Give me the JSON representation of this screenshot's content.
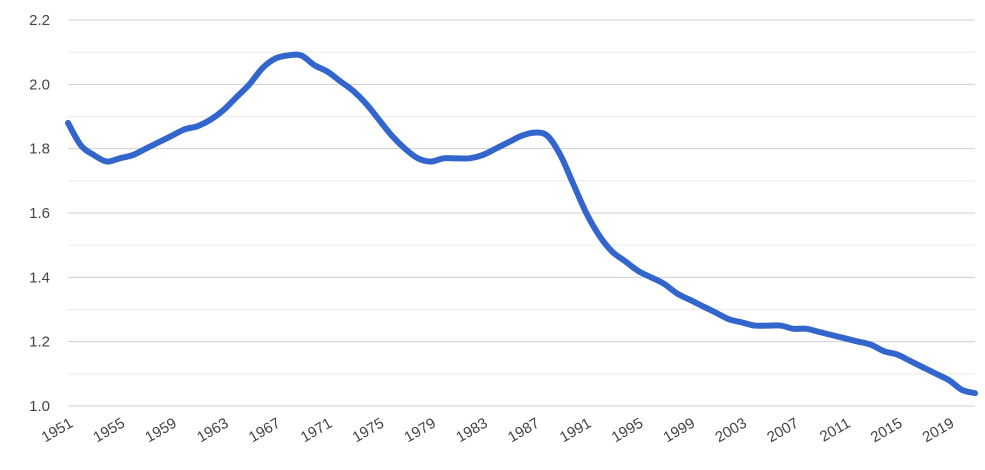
{
  "chart_data": {
    "type": "line",
    "title": "",
    "xlabel": "",
    "ylabel": "",
    "xlim": [
      1951,
      2021
    ],
    "ylim": [
      1.0,
      2.2
    ],
    "y_ticks": [
      1.0,
      1.2,
      1.4,
      1.6,
      1.8,
      2.0,
      2.2
    ],
    "y_tick_labels": [
      "1.0",
      "1.2",
      "1.4",
      "1.6",
      "1.8",
      "2.0",
      "2.2"
    ],
    "y_minor_ticks": [
      1.1,
      1.3,
      1.5,
      1.7,
      1.9,
      2.1
    ],
    "x_ticks": [
      1951,
      1955,
      1959,
      1963,
      1967,
      1971,
      1975,
      1979,
      1983,
      1987,
      1991,
      1995,
      1999,
      2003,
      2007,
      2011,
      2015,
      2019
    ],
    "x_tick_labels": [
      "1951",
      "1955",
      "1959",
      "1963",
      "1967",
      "1971",
      "1975",
      "1979",
      "1983",
      "1987",
      "1991",
      "1995",
      "1999",
      "2003",
      "2007",
      "2011",
      "2015",
      "2019"
    ],
    "grid": true,
    "legend": "none",
    "colors": {
      "line": "#3366cc"
    },
    "series": [
      {
        "x": [
          1951,
          1952,
          1953,
          1954,
          1955,
          1956,
          1957,
          1958,
          1959,
          1960,
          1961,
          1962,
          1963,
          1964,
          1965,
          1966,
          1967,
          1968,
          1969,
          1970,
          1971,
          1972,
          1973,
          1974,
          1975,
          1976,
          1977,
          1978,
          1979,
          1980,
          1981,
          1982,
          1983,
          1984,
          1985,
          1986,
          1987,
          1988,
          1989,
          1990,
          1991,
          1992,
          1993,
          1994,
          1995,
          1996,
          1997,
          1998,
          1999,
          2000,
          2001,
          2002,
          2003,
          2004,
          2005,
          2006,
          2007,
          2008,
          2009,
          2010,
          2011,
          2012,
          2013,
          2014,
          2015,
          2016,
          2017,
          2018,
          2019,
          2020,
          2021
        ],
        "values": [
          1.88,
          1.81,
          1.78,
          1.76,
          1.77,
          1.78,
          1.8,
          1.82,
          1.84,
          1.86,
          1.87,
          1.89,
          1.92,
          1.96,
          2.0,
          2.05,
          2.08,
          2.09,
          2.09,
          2.06,
          2.04,
          2.01,
          1.98,
          1.94,
          1.89,
          1.84,
          1.8,
          1.77,
          1.76,
          1.77,
          1.77,
          1.77,
          1.78,
          1.8,
          1.82,
          1.84,
          1.85,
          1.84,
          1.78,
          1.69,
          1.6,
          1.53,
          1.48,
          1.45,
          1.42,
          1.4,
          1.38,
          1.35,
          1.33,
          1.31,
          1.29,
          1.27,
          1.26,
          1.25,
          1.25,
          1.25,
          1.24,
          1.24,
          1.23,
          1.22,
          1.21,
          1.2,
          1.19,
          1.17,
          1.16,
          1.14,
          1.12,
          1.1,
          1.08,
          1.05,
          1.04
        ]
      }
    ]
  }
}
